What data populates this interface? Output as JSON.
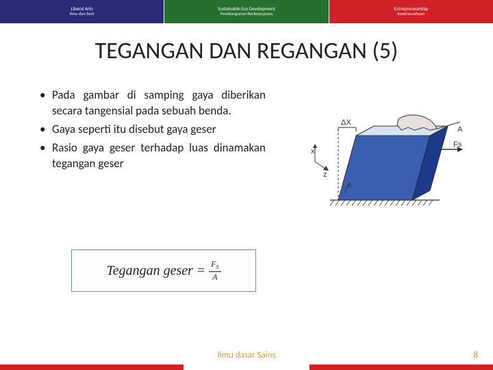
{
  "banner": {
    "segments": [
      {
        "bg": "#2a2a78",
        "line1": "Liberal Arts",
        "line2": "Ilmu dan Seni"
      },
      {
        "bg": "#256f2f",
        "line1": "Sustainable Eco Development",
        "line2": "Pembangunan Berkelanjutan"
      },
      {
        "bg": "#d22027",
        "line1": "Entrepreneurship",
        "line2": "Kewirausahaan"
      }
    ]
  },
  "title": "TEGANGAN DAN REGANGAN (5)",
  "bullets": [
    "Pada gambar di samping gaya diberikan secara tangensial pada sebuah benda.",
    "Gaya seperti itu disebut gaya geser",
    "Rasio gaya geser terhadap luas dinamakan tegangan geser"
  ],
  "formula": {
    "lhs": "Tegangan geser",
    "num": "F",
    "num_sub": "S",
    "den": "A"
  },
  "diagram": {
    "type": "infographic",
    "bg": "#ffffff",
    "block_fill_top": "#d7e4f5",
    "block_fill_left": "#3a5fb1",
    "block_fill_right": "#1b3b8a",
    "outline": "#2b2b2b",
    "ground_hatch": "#555555",
    "hand_stroke": "#555555",
    "hand_fill": "#e6e0da",
    "label_deltaX": "ΔX",
    "label_Fs": "Fs",
    "label_A": "A",
    "label_theta": "θ",
    "axes": {
      "x": "x",
      "z": "z"
    }
  },
  "footer": {
    "text": "Ilmu dasar Sains",
    "page": "8",
    "bar_color": "#d22027",
    "text_color": "#c9a03b"
  }
}
